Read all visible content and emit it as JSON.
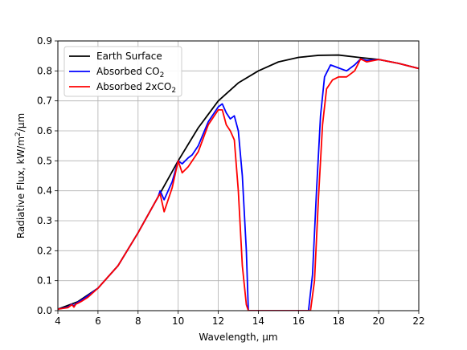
{
  "chart_data": {
    "type": "line",
    "xlabel": "Wavelength, μm",
    "ylabel": "Radiative Flux, kW/m²/μm",
    "xlim": [
      4,
      22
    ],
    "ylim": [
      0,
      0.9
    ],
    "x_ticks": [
      "4",
      "6",
      "8",
      "10",
      "12",
      "14",
      "16",
      "18",
      "20",
      "22"
    ],
    "y_ticks": [
      "0.0",
      "0.1",
      "0.2",
      "0.3",
      "0.4",
      "0.5",
      "0.6",
      "0.7",
      "0.8",
      "0.9"
    ],
    "grid": true,
    "legend_position": "top-left",
    "legend": [
      {
        "label": "Earth Surface",
        "color": "#000000"
      },
      {
        "label": "Absorbed CO",
        "sub": "2",
        "color": "#0000ff"
      },
      {
        "label": "Absorbed 2xCO",
        "sub": "2",
        "color": "#ff0000"
      }
    ],
    "series": [
      {
        "name": "Earth Surface",
        "color": "#000000",
        "x": [
          4,
          5,
          6,
          7,
          8,
          9,
          10,
          11,
          12,
          13,
          14,
          15,
          16,
          17,
          18,
          19,
          20,
          21,
          22
        ],
        "y": [
          0.005,
          0.03,
          0.075,
          0.15,
          0.26,
          0.38,
          0.5,
          0.61,
          0.7,
          0.76,
          0.8,
          0.83,
          0.845,
          0.852,
          0.853,
          0.845,
          0.838,
          0.825,
          0.808
        ]
      },
      {
        "name": "Absorbed CO2",
        "color": "#0000ff",
        "x": [
          4,
          4.5,
          4.7,
          4.8,
          4.9,
          5.0,
          5.2,
          5.5,
          6,
          7,
          8,
          9,
          9.1,
          9.3,
          9.5,
          9.7,
          10.0,
          10.2,
          10.5,
          10.7,
          11.0,
          11.5,
          12.0,
          12.2,
          12.4,
          12.6,
          12.8,
          13.0,
          13.2,
          13.4,
          13.5,
          16.5,
          16.7,
          16.9,
          17.1,
          17.3,
          17.6,
          18.0,
          18.4,
          18.8,
          19.1,
          19.4,
          20,
          21,
          22
        ],
        "y": [
          0.005,
          0.012,
          0.022,
          0.016,
          0.024,
          0.028,
          0.036,
          0.05,
          0.075,
          0.15,
          0.26,
          0.38,
          0.4,
          0.37,
          0.4,
          0.43,
          0.5,
          0.49,
          0.51,
          0.52,
          0.55,
          0.63,
          0.68,
          0.69,
          0.66,
          0.64,
          0.65,
          0.6,
          0.45,
          0.2,
          0.0,
          0.0,
          0.12,
          0.4,
          0.65,
          0.78,
          0.82,
          0.81,
          0.8,
          0.82,
          0.84,
          0.835,
          0.838,
          0.825,
          0.808
        ]
      },
      {
        "name": "Absorbed 2xCO2",
        "color": "#ff0000",
        "x": [
          4,
          4.5,
          4.7,
          4.8,
          4.9,
          5.0,
          5.2,
          5.5,
          6,
          7,
          8,
          9,
          9.1,
          9.3,
          9.5,
          9.7,
          10.0,
          10.2,
          10.5,
          10.7,
          11.0,
          11.5,
          12.0,
          12.2,
          12.4,
          12.6,
          12.8,
          13.0,
          13.2,
          13.4,
          13.5,
          16.6,
          16.8,
          17.0,
          17.2,
          17.4,
          17.7,
          18.0,
          18.4,
          18.8,
          19.1,
          19.4,
          20,
          21,
          22
        ],
        "y": [
          0.005,
          0.01,
          0.02,
          0.012,
          0.022,
          0.025,
          0.032,
          0.045,
          0.075,
          0.15,
          0.26,
          0.38,
          0.39,
          0.33,
          0.37,
          0.41,
          0.5,
          0.46,
          0.48,
          0.5,
          0.53,
          0.62,
          0.67,
          0.67,
          0.62,
          0.6,
          0.57,
          0.4,
          0.15,
          0.02,
          0.0,
          0.0,
          0.1,
          0.38,
          0.62,
          0.74,
          0.77,
          0.78,
          0.78,
          0.8,
          0.84,
          0.83,
          0.838,
          0.825,
          0.808
        ]
      }
    ]
  }
}
